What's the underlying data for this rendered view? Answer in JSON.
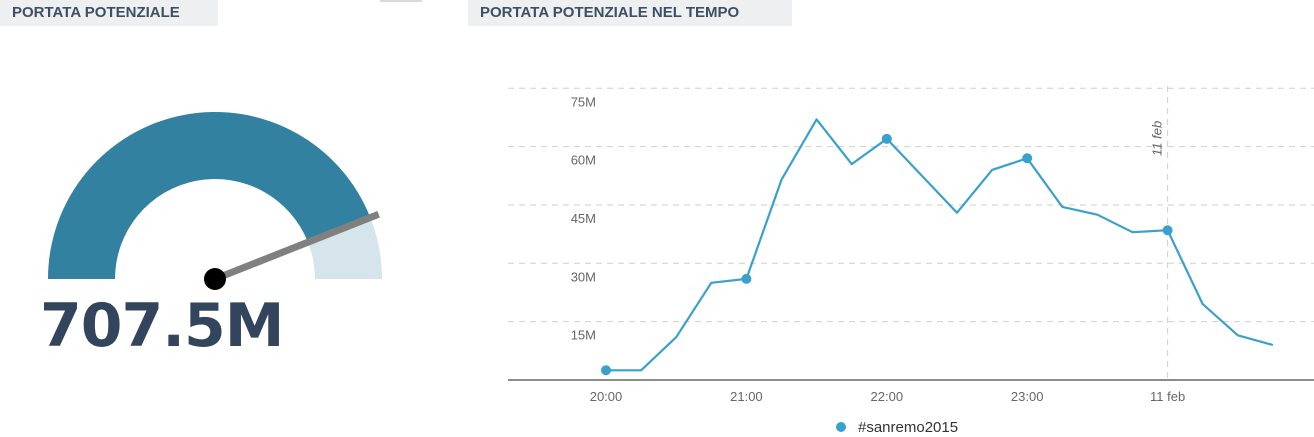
{
  "panels": {
    "left_title": "PORTATA POTENZIALE",
    "right_title": "PORTATA POTENZIALE NEL TEMPO"
  },
  "gauge": {
    "value_label": "707.5M",
    "fill_fraction": 0.88,
    "colors": {
      "fill": "#3381a0",
      "track": "#d6e4eb",
      "needle": "#808080",
      "hub": "#000000"
    }
  },
  "chart_data": {
    "type": "line",
    "x_labels": [
      "20:00",
      "21:00",
      "22:00",
      "23:00",
      "11 feb"
    ],
    "y_ticks": [
      "15M",
      "30M",
      "45M",
      "60M",
      "75M"
    ],
    "ylim": [
      0,
      75
    ],
    "annotation": "11 feb",
    "grid": true,
    "legend": "bottom-center",
    "series": [
      {
        "name": "#sanremo2015",
        "color": "#3aa0cc",
        "points": [
          {
            "x": "20:00",
            "y": 2.5
          },
          {
            "x": "20:15",
            "y": 2.5
          },
          {
            "x": "20:30",
            "y": 11
          },
          {
            "x": "20:45",
            "y": 25
          },
          {
            "x": "21:00",
            "y": 26
          },
          {
            "x": "21:15",
            "y": 51.5
          },
          {
            "x": "21:30",
            "y": 67
          },
          {
            "x": "21:45",
            "y": 55.5
          },
          {
            "x": "22:00",
            "y": 62
          },
          {
            "x": "22:15",
            "y": 52.5
          },
          {
            "x": "22:30",
            "y": 43
          },
          {
            "x": "22:45",
            "y": 54
          },
          {
            "x": "23:00",
            "y": 57
          },
          {
            "x": "23:15",
            "y": 44.5
          },
          {
            "x": "23:30",
            "y": 42.5
          },
          {
            "x": "23:45",
            "y": 38
          },
          {
            "x": "00:00",
            "y": 38.5
          },
          {
            "x": "00:15",
            "y": 19.5
          },
          {
            "x": "00:30",
            "y": 11.5
          },
          {
            "x": "00:45",
            "y": 9
          }
        ],
        "markers_at": [
          "20:00",
          "21:00",
          "22:00",
          "23:00",
          "00:00"
        ]
      }
    ]
  }
}
